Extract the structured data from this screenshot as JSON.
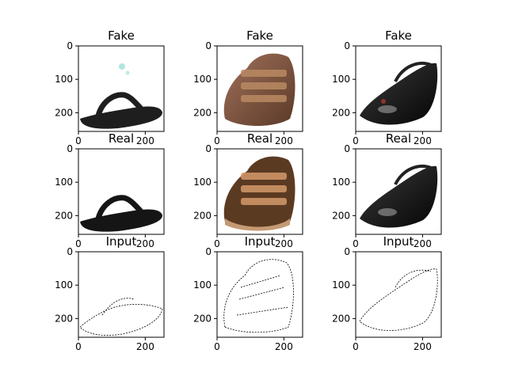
{
  "figure": {
    "background": "#ffffff",
    "grid": {
      "rows": 3,
      "cols": 3
    },
    "axis_ranges": {
      "x": [
        0,
        256
      ],
      "y": [
        256,
        0
      ]
    },
    "x_tick_values": [
      0,
      200
    ],
    "y_tick_values": [
      0,
      100,
      200
    ],
    "x_tick_labels": [
      "0",
      "200"
    ],
    "y_tick_labels": [
      "0",
      "100",
      "200"
    ],
    "rows": [
      {
        "title": "Fake",
        "panels": [
          {
            "title": "Fake",
            "content": "black flip-flop sandal image",
            "colors": {
              "shoe": "#1e1e1e",
              "artifact": "#7fd6c8"
            }
          },
          {
            "title": "Fake",
            "content": "brown velcro baby shoe image",
            "colors": {
              "shoe": "#8a5a3a",
              "accent": "#b88a62"
            }
          },
          {
            "title": "Fake",
            "content": "black patent mary jane shoe image",
            "colors": {
              "shoe": "#141414",
              "artifact": "#c0392b"
            }
          }
        ]
      },
      {
        "title": "Real",
        "panels": [
          {
            "title": "Real",
            "content": "black flip-flop sandal image",
            "colors": {
              "shoe": "#151515"
            }
          },
          {
            "title": "Real",
            "content": "brown velcro baby shoe image",
            "colors": {
              "shoe": "#5b3a22",
              "accent": "#d49a6a"
            }
          },
          {
            "title": "Real",
            "content": "black patent mary jane shoe image",
            "colors": {
              "shoe": "#0d0d0d"
            }
          }
        ]
      },
      {
        "title": "Input",
        "panels": [
          {
            "title": "Input",
            "content": "edge map of sandal",
            "colors": {
              "edge": "#000000"
            }
          },
          {
            "title": "Input",
            "content": "edge map of baby shoe",
            "colors": {
              "edge": "#000000"
            }
          },
          {
            "title": "Input",
            "content": "edge map of mary jane shoe",
            "colors": {
              "edge": "#000000"
            }
          }
        ]
      }
    ]
  }
}
